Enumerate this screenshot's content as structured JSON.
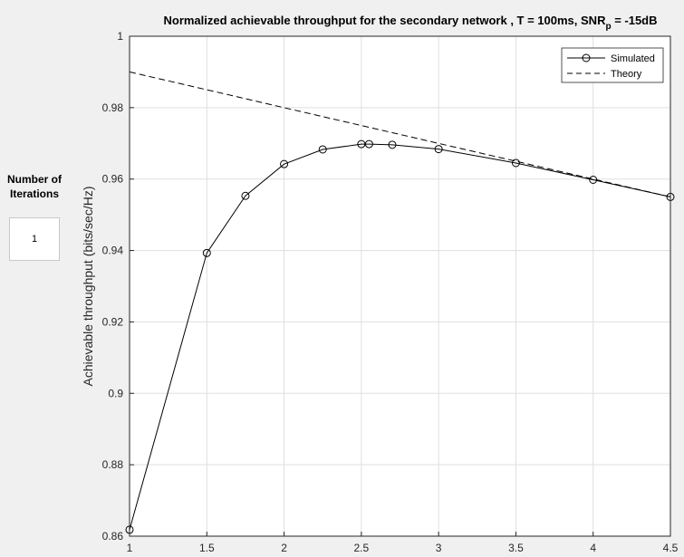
{
  "side_panel": {
    "iterations_label": "Number of\nIterations",
    "iterations_value": "1"
  },
  "chart_data": {
    "type": "line",
    "title_main": "Normalized achievable throughput for the secondary network , T = 100ms, SNR",
    "title_sub": "p",
    "title_tail": " = -15dB",
    "xlabel": "",
    "ylabel": "Achievable throughput (bits/sec/Hz)",
    "xlim": [
      1,
      4.5
    ],
    "ylim": [
      0.86,
      1
    ],
    "xticks": [
      1,
      1.5,
      2,
      2.5,
      3,
      3.5,
      4,
      4.5
    ],
    "xtick_labels": [
      "1",
      "1.5",
      "2",
      "2.5",
      "3",
      "3.5",
      "4",
      "4.5"
    ],
    "yticks": [
      0.86,
      0.88,
      0.9,
      0.92,
      0.94,
      0.96,
      0.98,
      1
    ],
    "ytick_labels": [
      "0.86",
      "0.88",
      "0.9",
      "0.92",
      "0.94",
      "0.96",
      "0.98",
      "1"
    ],
    "grid": true,
    "legend_position": "top-right",
    "series": [
      {
        "name": "Simulated",
        "style": "solid-circle",
        "color": "#000000",
        "x": [
          1,
          1.5,
          1.75,
          2,
          2.25,
          2.5,
          2.55,
          2.7,
          3,
          3.5,
          4,
          4.5
        ],
        "y": [
          0.8618,
          0.9393,
          0.9553,
          0.9642,
          0.9683,
          0.9698,
          0.9698,
          0.9696,
          0.9684,
          0.9645,
          0.9598,
          0.955
        ]
      },
      {
        "name": "Theory",
        "style": "dashed",
        "color": "#000000",
        "x": [
          1,
          1.5,
          2,
          2.5,
          3,
          3.5,
          4,
          4.5
        ],
        "y": [
          0.99,
          0.985,
          0.98,
          0.975,
          0.97,
          0.965,
          0.96,
          0.955
        ]
      }
    ]
  }
}
